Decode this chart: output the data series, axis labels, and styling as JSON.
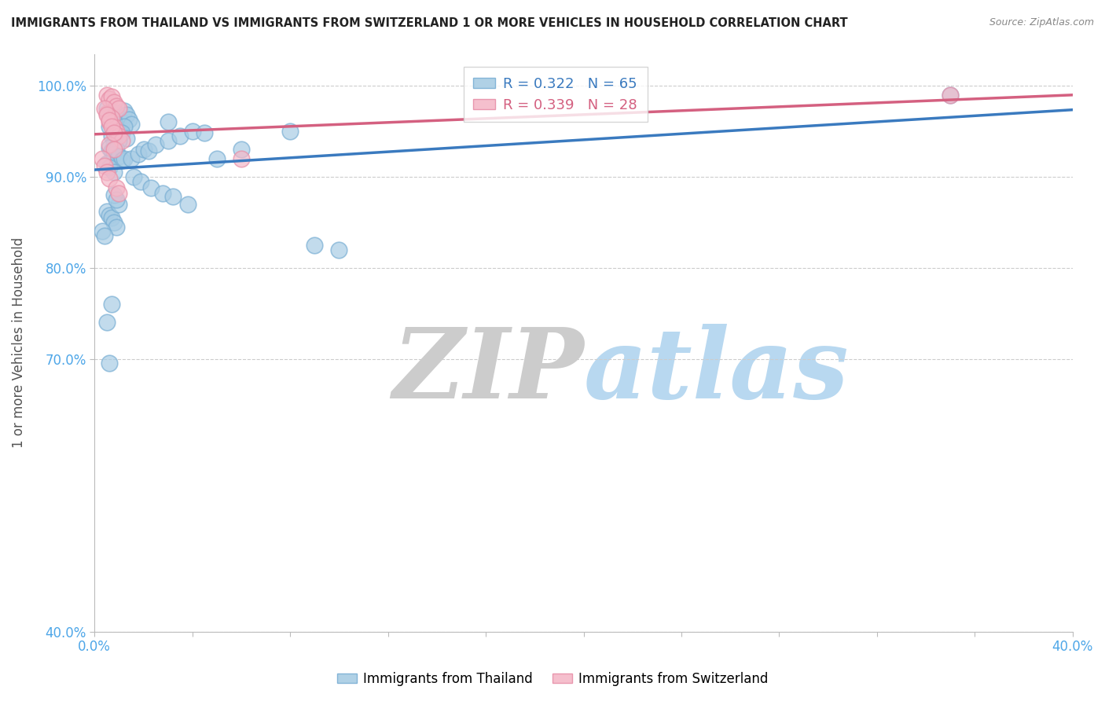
{
  "title": "IMMIGRANTS FROM THAILAND VS IMMIGRANTS FROM SWITZERLAND 1 OR MORE VEHICLES IN HOUSEHOLD CORRELATION CHART",
  "source": "Source: ZipAtlas.com",
  "ylabel": "1 or more Vehicles in Household",
  "legend_blue_r": "R = 0.322",
  "legend_blue_n": "N = 65",
  "legend_pink_r": "R = 0.339",
  "legend_pink_n": "N = 28",
  "color_blue": "#a8cce4",
  "color_blue_edge": "#7aafd4",
  "color_pink": "#f4b8c8",
  "color_pink_edge": "#e890a8",
  "color_blue_line": "#3a7abf",
  "color_pink_line": "#d46080",
  "watermark_zip": "ZIP",
  "watermark_atlas": "atlas",
  "xlim": [
    0.0,
    0.4
  ],
  "ylim": [
    0.4,
    1.035
  ],
  "y_ticks": [
    0.4,
    0.7,
    0.8,
    0.9,
    1.0
  ],
  "y_tick_labels": [
    "40.0%",
    "70.0%",
    "80.0%",
    "90.0%",
    "100.0%"
  ],
  "x_tick_left_label": "0.0%",
  "x_tick_right_label": "40.0%",
  "blue_x": [
    0.005,
    0.007,
    0.008,
    0.009,
    0.01,
    0.011,
    0.012,
    0.013,
    0.014,
    0.015,
    0.006,
    0.008,
    0.01,
    0.012,
    0.007,
    0.009,
    0.011,
    0.013,
    0.008,
    0.01,
    0.006,
    0.007,
    0.008,
    0.009,
    0.01,
    0.011,
    0.012,
    0.005,
    0.006,
    0.008,
    0.015,
    0.018,
    0.02,
    0.022,
    0.025,
    0.03,
    0.035,
    0.04,
    0.045,
    0.016,
    0.019,
    0.023,
    0.028,
    0.032,
    0.038,
    0.005,
    0.006,
    0.007,
    0.008,
    0.009,
    0.05,
    0.06,
    0.08,
    0.09,
    0.1,
    0.003,
    0.004,
    0.01,
    0.007,
    0.006,
    0.005,
    0.008,
    0.009,
    0.35,
    0.03
  ],
  "blue_y": [
    0.975,
    0.97,
    0.965,
    0.97,
    0.965,
    0.96,
    0.972,
    0.968,
    0.963,
    0.958,
    0.955,
    0.96,
    0.95,
    0.955,
    0.945,
    0.95,
    0.948,
    0.942,
    0.938,
    0.94,
    0.932,
    0.928,
    0.925,
    0.93,
    0.922,
    0.918,
    0.92,
    0.915,
    0.91,
    0.905,
    0.92,
    0.925,
    0.93,
    0.928,
    0.935,
    0.94,
    0.945,
    0.95,
    0.948,
    0.9,
    0.895,
    0.888,
    0.882,
    0.878,
    0.87,
    0.862,
    0.858,
    0.855,
    0.85,
    0.845,
    0.92,
    0.93,
    0.95,
    0.825,
    0.82,
    0.84,
    0.835,
    0.87,
    0.76,
    0.695,
    0.74,
    0.88,
    0.875,
    0.99,
    0.96
  ],
  "pink_x": [
    0.005,
    0.006,
    0.007,
    0.008,
    0.009,
    0.01,
    0.005,
    0.007,
    0.006,
    0.008,
    0.009,
    0.01,
    0.011,
    0.006,
    0.008,
    0.004,
    0.005,
    0.006,
    0.007,
    0.008,
    0.003,
    0.004,
    0.005,
    0.006,
    0.009,
    0.01,
    0.35,
    0.06
  ],
  "pink_y": [
    0.99,
    0.985,
    0.988,
    0.982,
    0.978,
    0.975,
    0.97,
    0.965,
    0.96,
    0.955,
    0.95,
    0.945,
    0.94,
    0.935,
    0.93,
    0.975,
    0.968,
    0.962,
    0.955,
    0.948,
    0.92,
    0.912,
    0.905,
    0.898,
    0.888,
    0.882,
    0.99,
    0.92
  ]
}
